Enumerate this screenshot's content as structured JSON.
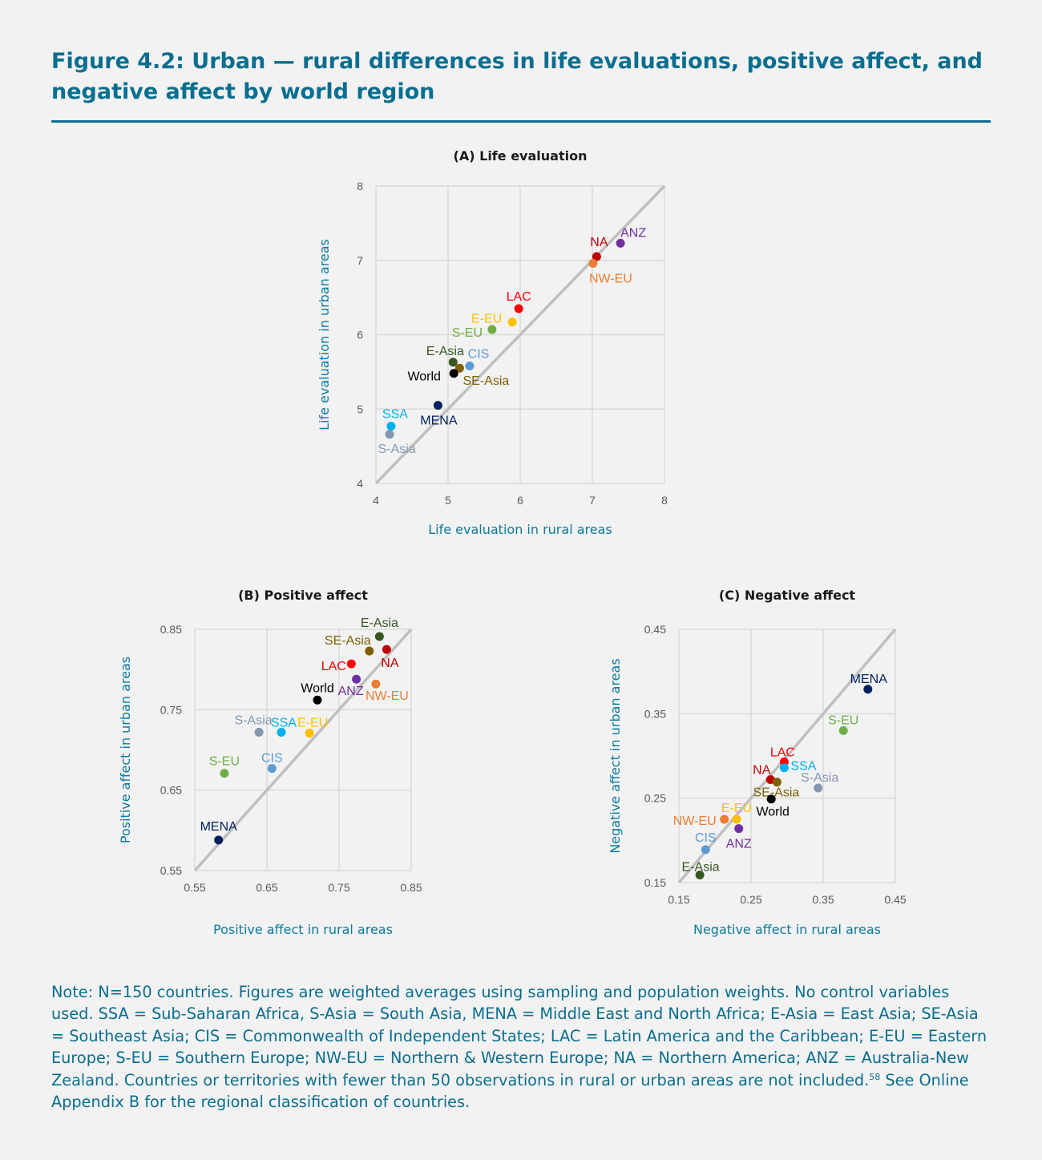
{
  "figure": {
    "title": "Figure 4.2: Urban — rural differences in life evaluations, positive affect, and negative affect by world region"
  },
  "colors": {
    "title": "#0a6e8f",
    "diagonal": "#bfbfbf",
    "grid": "#d9d9d9",
    "regions": {
      "NA": "#c00000",
      "ANZ": "#7030a0",
      "NW-EU": "#ed7d31",
      "LAC": "#ff0000",
      "E-EU": "#ffc000",
      "S-EU": "#70ad47",
      "E-Asia": "#375623",
      "SE-Asia": "#7f6000",
      "CIS": "#5b9bd5",
      "World": "#000000",
      "MENA": "#002060",
      "SSA": "#00b0f0",
      "S-Asia": "#8497b0"
    }
  },
  "chart_data": [
    {
      "type": "scatter",
      "title": "(A) Life evaluation",
      "xlabel": "Life evaluation in rural areas",
      "ylabel": "Life evaluation in urban areas",
      "xlim": [
        4,
        8
      ],
      "ylim": [
        4,
        8
      ],
      "xticks": [
        "4",
        "5",
        "6",
        "7",
        "8"
      ],
      "yticks": [
        "4",
        "5",
        "6",
        "7",
        "8"
      ],
      "grid": true,
      "diagonal": "y = x",
      "points": [
        {
          "label": "NA",
          "x": 7.06,
          "y": 7.05
        },
        {
          "label": "ANZ",
          "x": 7.39,
          "y": 7.23
        },
        {
          "label": "NW-EU",
          "x": 7.01,
          "y": 6.96
        },
        {
          "label": "LAC",
          "x": 5.98,
          "y": 6.35
        },
        {
          "label": "E-EU",
          "x": 5.89,
          "y": 6.17
        },
        {
          "label": "S-EU",
          "x": 5.61,
          "y": 6.07
        },
        {
          "label": "E-Asia",
          "x": 5.07,
          "y": 5.63
        },
        {
          "label": "SE-Asia",
          "x": 5.16,
          "y": 5.55
        },
        {
          "label": "CIS",
          "x": 5.3,
          "y": 5.58
        },
        {
          "label": "World",
          "x": 5.08,
          "y": 5.48
        },
        {
          "label": "MENA",
          "x": 4.86,
          "y": 5.05
        },
        {
          "label": "SSA",
          "x": 4.21,
          "y": 4.77
        },
        {
          "label": "S-Asia",
          "x": 4.19,
          "y": 4.66
        }
      ]
    },
    {
      "type": "scatter",
      "title": "(B) Positive affect",
      "xlabel": "Positive affect in rural areas",
      "ylabel": "Positive affect in urban areas",
      "xlim": [
        0.55,
        0.85
      ],
      "ylim": [
        0.55,
        0.85
      ],
      "xticks": [
        "0.55",
        "0.65",
        "0.75",
        "0.85"
      ],
      "yticks": [
        "0.55",
        "0.65",
        "0.75",
        "0.85"
      ],
      "grid": true,
      "diagonal": "y = x",
      "points": [
        {
          "label": "E-Asia",
          "x": 0.806,
          "y": 0.841
        },
        {
          "label": "SE-Asia",
          "x": 0.792,
          "y": 0.823
        },
        {
          "label": "NA",
          "x": 0.816,
          "y": 0.825
        },
        {
          "label": "LAC",
          "x": 0.767,
          "y": 0.807
        },
        {
          "label": "ANZ",
          "x": 0.774,
          "y": 0.788
        },
        {
          "label": "NW-EU",
          "x": 0.801,
          "y": 0.782
        },
        {
          "label": "World",
          "x": 0.72,
          "y": 0.762
        },
        {
          "label": "S-Asia",
          "x": 0.639,
          "y": 0.722
        },
        {
          "label": "SSA",
          "x": 0.67,
          "y": 0.722
        },
        {
          "label": "E-EU",
          "x": 0.709,
          "y": 0.721
        },
        {
          "label": "S-EU",
          "x": 0.591,
          "y": 0.671
        },
        {
          "label": "CIS",
          "x": 0.657,
          "y": 0.677
        },
        {
          "label": "MENA",
          "x": 0.583,
          "y": 0.588
        }
      ]
    },
    {
      "type": "scatter",
      "title": "(C) Negative affect",
      "xlabel": "Negative affect in rural areas",
      "ylabel": "Negative affect in urban areas",
      "xlim": [
        0.15,
        0.45
      ],
      "ylim": [
        0.15,
        0.45
      ],
      "xticks": [
        "0.15",
        "0.25",
        "0.35",
        "0.45"
      ],
      "yticks": [
        "0.15",
        "0.25",
        "0.35",
        "0.45"
      ],
      "grid": true,
      "diagonal": "y = x",
      "points": [
        {
          "label": "MENA",
          "x": 0.412,
          "y": 0.379
        },
        {
          "label": "S-EU",
          "x": 0.378,
          "y": 0.33
        },
        {
          "label": "LAC",
          "x": 0.296,
          "y": 0.293
        },
        {
          "label": "SSA",
          "x": 0.296,
          "y": 0.286
        },
        {
          "label": "NA",
          "x": 0.277,
          "y": 0.272
        },
        {
          "label": "SE-Asia",
          "x": 0.286,
          "y": 0.269
        },
        {
          "label": "S-Asia",
          "x": 0.343,
          "y": 0.262
        },
        {
          "label": "World",
          "x": 0.278,
          "y": 0.249
        },
        {
          "label": "NW-EU",
          "x": 0.213,
          "y": 0.225
        },
        {
          "label": "E-EU",
          "x": 0.23,
          "y": 0.225
        },
        {
          "label": "ANZ",
          "x": 0.233,
          "y": 0.214
        },
        {
          "label": "CIS",
          "x": 0.187,
          "y": 0.189
        },
        {
          "label": "E-Asia",
          "x": 0.179,
          "y": 0.159
        }
      ]
    }
  ],
  "note": {
    "text_before": "Note: N=150 countries. Figures are weighted averages using sampling and population weights. No control variables used. SSA = Sub-Saharan Africa, S-Asia = South Asia, MENA = Middle East and North Africa; E-Asia = East Asia; SE-Asia = Southeast Asia; CIS = Commonwealth of Independent States; LAC = Latin America and the Caribbean; E-EU = Eastern Europe; S-EU = Southern Europe; NW-EU = Northern & Western Europe; NA = Northern America; ANZ = Australia-New Zealand. Countries or territories with fewer than 50 observations in rural or urban areas are not included.",
    "footnote_ref": "58",
    "text_after": " See Online Appendix B for the regional classification of countries."
  }
}
